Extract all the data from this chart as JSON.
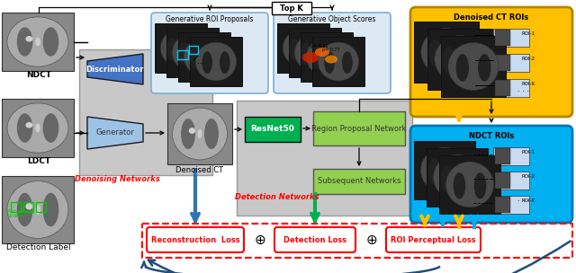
{
  "bg_color": "#f0f0f0",
  "topk_label": "Top K",
  "ndct_label": "NDCT",
  "ldct_label": "LDCT",
  "denoised_ct_label": "Denoised CT",
  "detection_label": "Detection Label",
  "discriminator_label": "Discriminator",
  "generator_label": "Generator",
  "denoising_networks_label": "Denoising Networks",
  "resnet50_label": "ResNet50",
  "rpn_label": "Region Proposal Network",
  "subsequent_label": "Subsequent Networks",
  "detection_networks_label": "Detection Networks",
  "gen_roi_label": "Generative ROI Proposals",
  "gen_obj_label": "Generative Object Scores",
  "denoised_ct_rois_label": "Denoised CT ROIs",
  "ndct_rois_label": "NDCT ROIs",
  "recon_loss_label": "Reconstruction  Loss",
  "detect_loss_label": "Detection Loss",
  "roi_loss_label": "ROI Perceptual Loss",
  "colors": {
    "blue_disc": "#4472c4",
    "light_blue_gen": "#9dc3e6",
    "green_resnet": "#00b050",
    "light_green_rpn": "#92d050",
    "light_green_sub": "#92d050",
    "orange_box": "#ffc000",
    "cyan_box": "#00b0f0",
    "gray_bg_denoise": "#c0c0c0",
    "gray_bg_detect": "#bfbfbf",
    "light_blue_roi": "#dce6f1",
    "red_text": "#ff0000",
    "white": "#ffffff",
    "black": "#000000",
    "dark_blue_arrow": "#1f4e79",
    "med_blue_arrow": "#2e75b6",
    "dark_green_arrow": "#00b050",
    "yellow_arrow": "#ffc000",
    "cyan_arrow": "#00b0f0"
  }
}
